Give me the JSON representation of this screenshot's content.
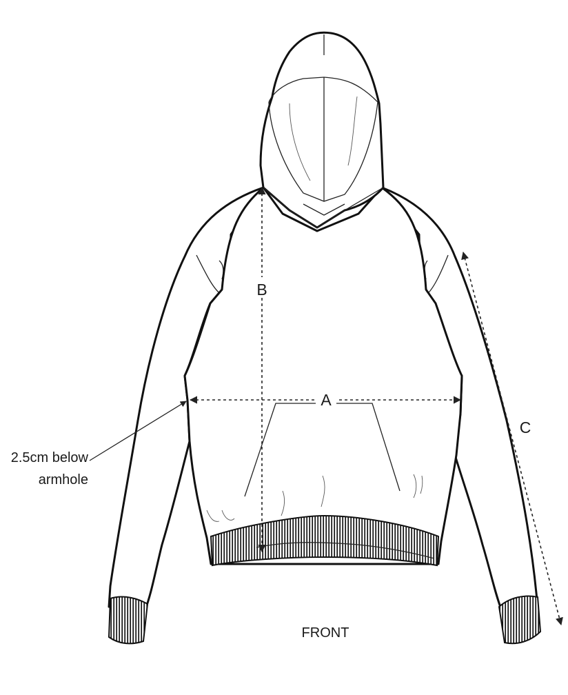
{
  "labels": {
    "measure_a": "A",
    "measure_b": "B",
    "measure_c": "C",
    "note_line1": "2.5cm below",
    "note_line2": "armhole",
    "view": "FRONT"
  },
  "colors": {
    "ink": "#111111",
    "paper": "#ffffff"
  }
}
